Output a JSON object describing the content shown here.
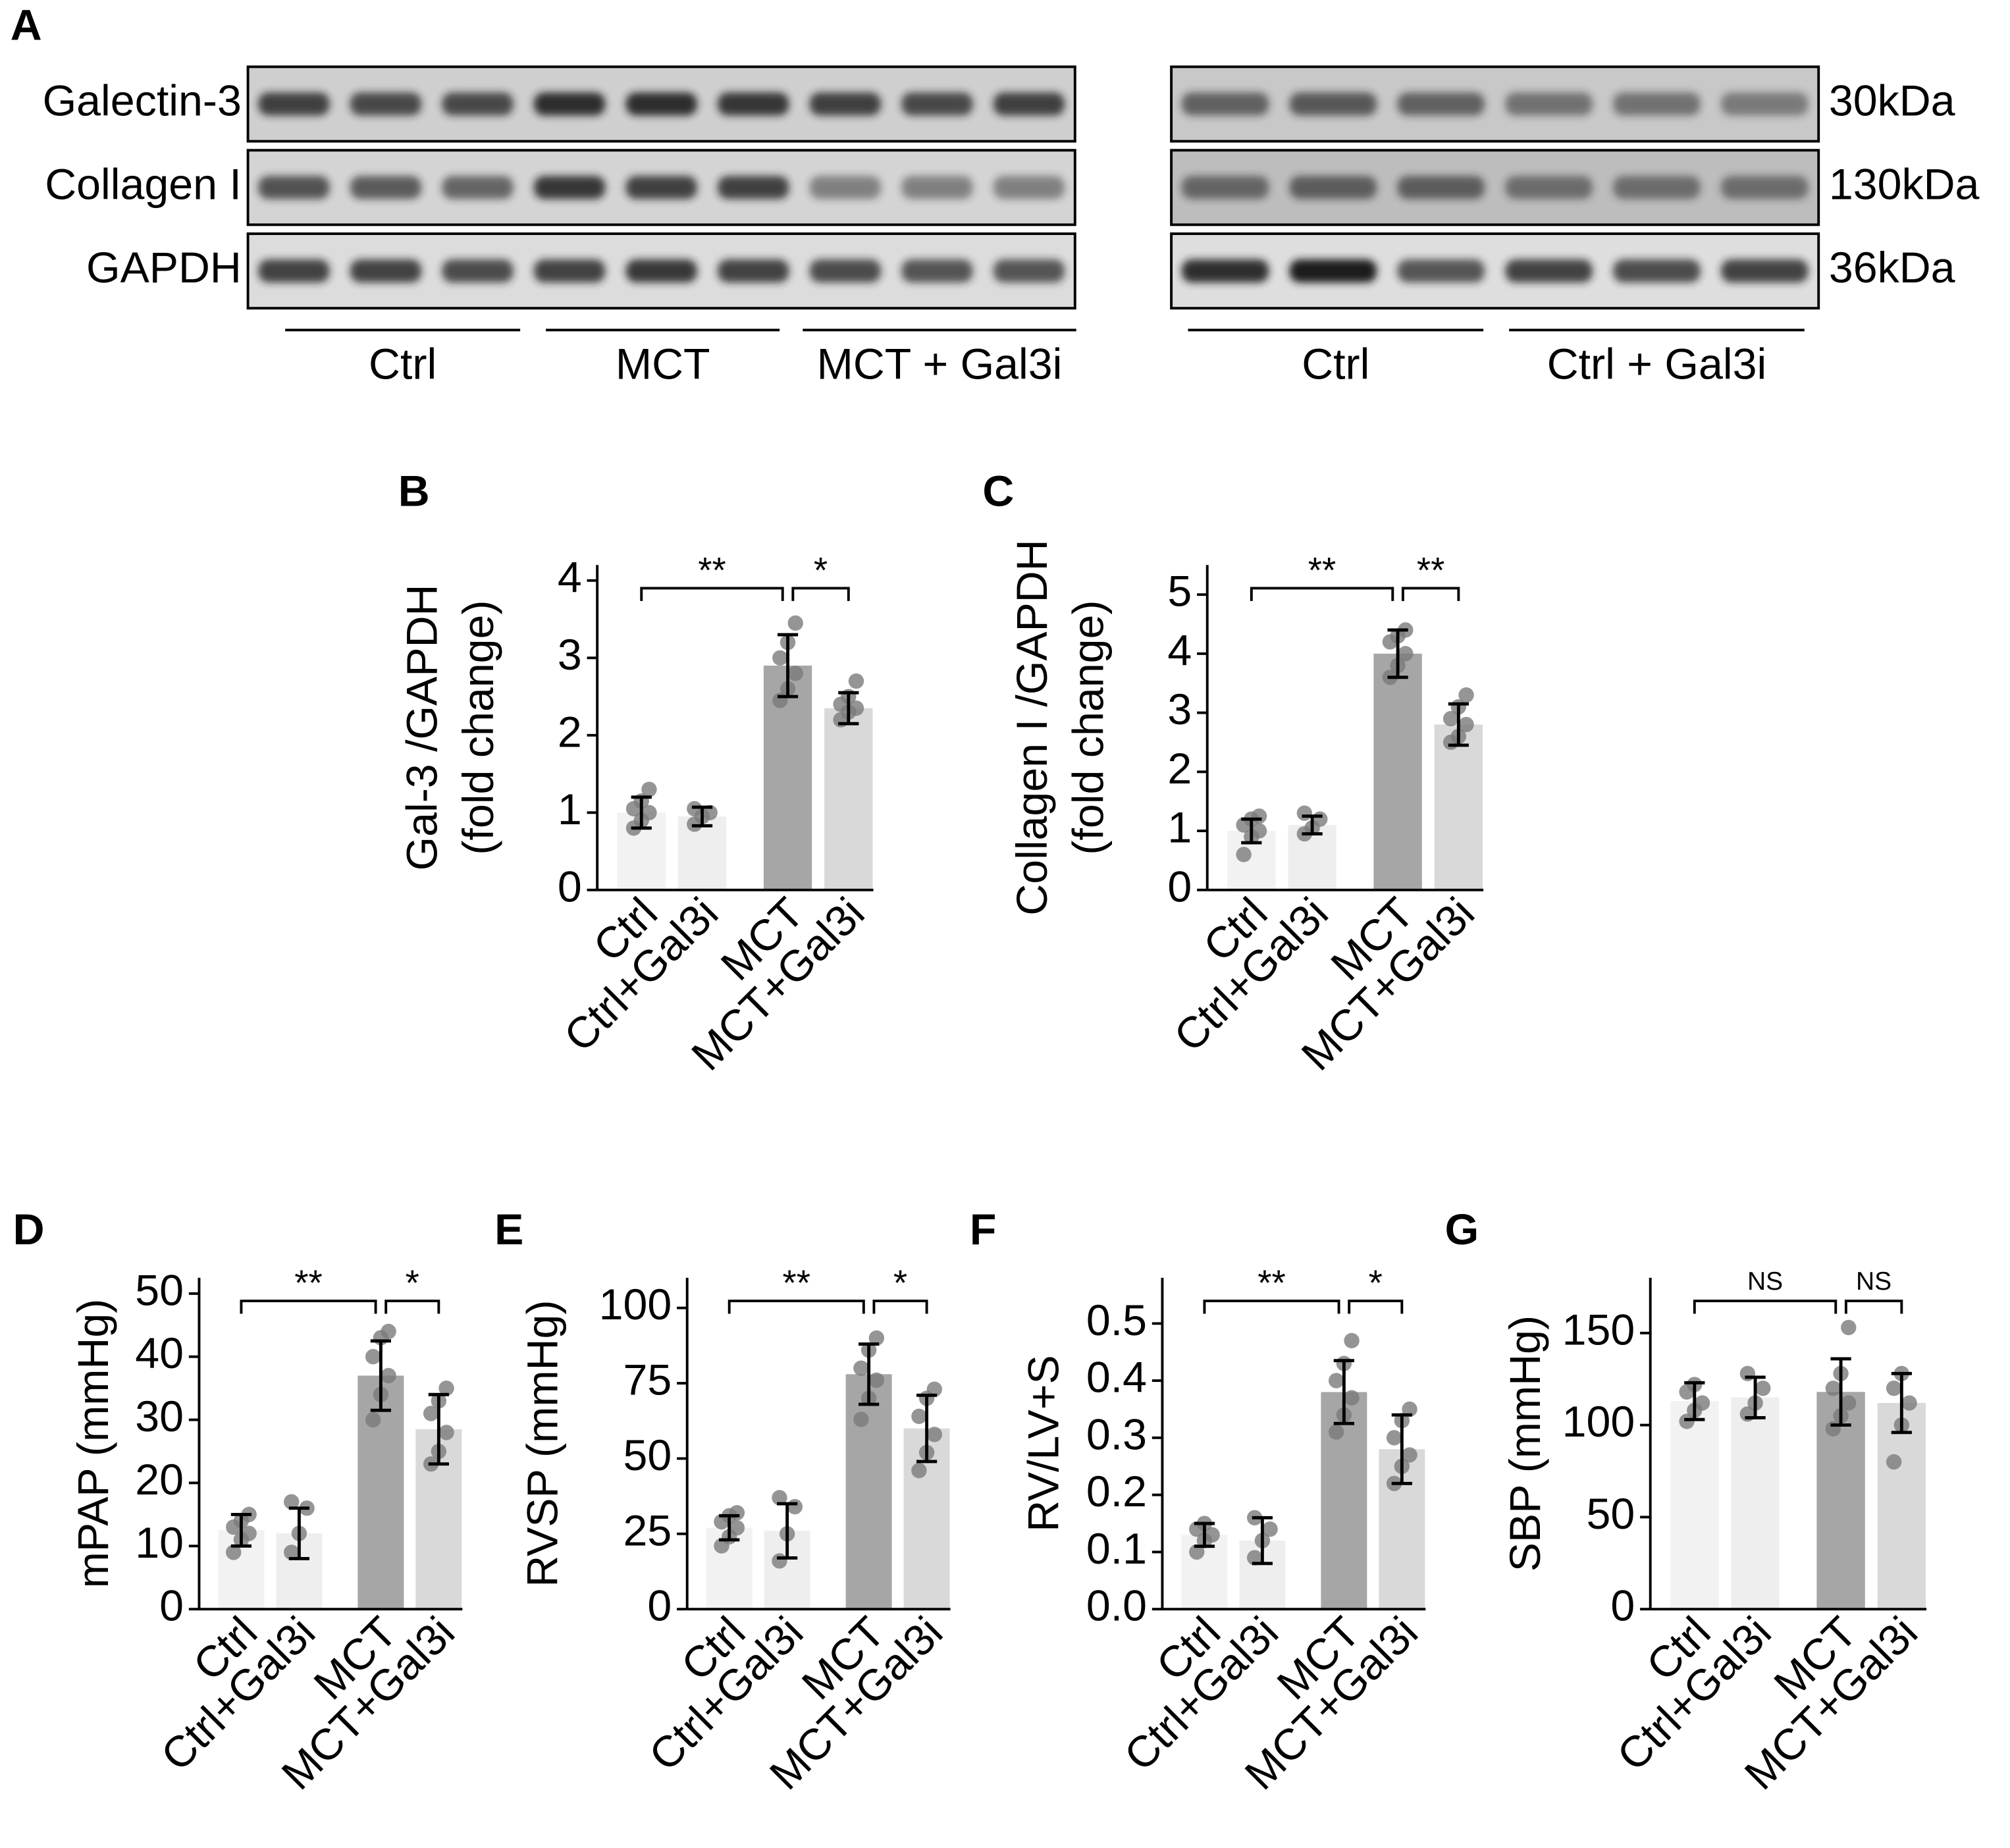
{
  "panel_a": {
    "letter": "A",
    "rows": [
      "Galectin-3",
      "Collagen I",
      "GAPDH"
    ],
    "sizes": [
      "30kDa",
      "130kDa",
      "36kDa"
    ],
    "left_groups": [
      "Ctrl",
      "MCT",
      "MCT + Gal3i"
    ],
    "right_groups": [
      "Ctrl",
      "Ctrl + Gal3i"
    ]
  },
  "chart_data": [
    {
      "type": "bar",
      "panel": "B",
      "ylabel": [
        "Gal-3 /GAPDH",
        "(fold change)"
      ],
      "categories": [
        "Ctrl",
        "Ctrl+Gal3i",
        "MCT",
        "MCT+Gal3i"
      ],
      "colors": [
        "#f2f2f2",
        "#eeeeee",
        "#a6a6a6",
        "#d9d9d9"
      ],
      "values": [
        1.0,
        0.95,
        2.9,
        2.35
      ],
      "errors": [
        0.2,
        0.12,
        0.4,
        0.2
      ],
      "points": [
        [
          0.8,
          0.9,
          1.0,
          1.05,
          1.15,
          1.3
        ],
        [
          0.85,
          0.95,
          1.0,
          1.05
        ],
        [
          2.45,
          2.6,
          2.8,
          3.0,
          3.2,
          3.45
        ],
        [
          2.2,
          2.3,
          2.35,
          2.4,
          2.5,
          2.7
        ]
      ],
      "ylim": [
        0,
        4.2
      ],
      "yticks": [
        0,
        1,
        2,
        3,
        4
      ],
      "significance": [
        {
          "between": [
            0,
            2
          ],
          "label": "**"
        },
        {
          "between": [
            2,
            3
          ],
          "label": "*"
        }
      ]
    },
    {
      "type": "bar",
      "panel": "C",
      "ylabel": [
        "Collagen I /GAPDH",
        "(fold change)"
      ],
      "categories": [
        "Ctrl",
        "Ctrl+Gal3i",
        "MCT",
        "MCT+Gal3i"
      ],
      "colors": [
        "#f2f2f2",
        "#eeeeee",
        "#a6a6a6",
        "#d9d9d9"
      ],
      "values": [
        1.0,
        1.1,
        4.0,
        2.8
      ],
      "errors": [
        0.2,
        0.15,
        0.4,
        0.35
      ],
      "points": [
        [
          0.6,
          0.9,
          1.0,
          1.1,
          1.2,
          1.25
        ],
        [
          0.95,
          1.05,
          1.2,
          1.3
        ],
        [
          3.6,
          3.8,
          4.0,
          4.2,
          4.3,
          4.4
        ],
        [
          2.5,
          2.6,
          2.8,
          2.9,
          3.1,
          3.3
        ]
      ],
      "ylim": [
        0,
        5.5
      ],
      "yticks": [
        0,
        1,
        2,
        3,
        4,
        5
      ],
      "significance": [
        {
          "between": [
            0,
            2
          ],
          "label": "**"
        },
        {
          "between": [
            2,
            3
          ],
          "label": "**"
        }
      ]
    },
    {
      "type": "bar",
      "panel": "D",
      "ylabel": [
        "mPAP (mmHg)"
      ],
      "categories": [
        "Ctrl",
        "Ctrl+Gal3i",
        "MCT",
        "MCT+Gal3i"
      ],
      "colors": [
        "#f2f2f2",
        "#eeeeee",
        "#a6a6a6",
        "#d9d9d9"
      ],
      "values": [
        12.5,
        12,
        37,
        28.5
      ],
      "errors": [
        2.5,
        4,
        5.5,
        5.5
      ],
      "points": [
        [
          9,
          11,
          12,
          13,
          14,
          15
        ],
        [
          9,
          12,
          16,
          17
        ],
        [
          30,
          34,
          37,
          40,
          43,
          44
        ],
        [
          23,
          25,
          28,
          31,
          33,
          35
        ]
      ],
      "ylim": [
        0,
        52.5
      ],
      "yticks": [
        0,
        10,
        20,
        30,
        40,
        50
      ],
      "significance": [
        {
          "between": [
            0,
            2
          ],
          "label": "**"
        },
        {
          "between": [
            2,
            3
          ],
          "label": "*"
        }
      ]
    },
    {
      "type": "bar",
      "panel": "E",
      "ylabel": [
        "RVSP (mmHg)"
      ],
      "categories": [
        "Ctrl",
        "Ctrl+Gal3i",
        "MCT",
        "MCT+Gal3i"
      ],
      "colors": [
        "#f2f2f2",
        "#eeeeee",
        "#a6a6a6",
        "#d9d9d9"
      ],
      "values": [
        27,
        26,
        78,
        60
      ],
      "errors": [
        4,
        9,
        10,
        11
      ],
      "points": [
        [
          21,
          24,
          27,
          29,
          31,
          32
        ],
        [
          16,
          25,
          34,
          37
        ],
        [
          63,
          70,
          76,
          80,
          86,
          90
        ],
        [
          46,
          52,
          58,
          64,
          70,
          73
        ]
      ],
      "ylim": [
        0,
        110
      ],
      "yticks": [
        0,
        25,
        50,
        75,
        100
      ],
      "significance": [
        {
          "between": [
            0,
            2
          ],
          "label": "**"
        },
        {
          "between": [
            2,
            3
          ],
          "label": "*"
        }
      ]
    },
    {
      "type": "bar",
      "panel": "F",
      "ylabel": [
        "RV/LV+S"
      ],
      "categories": [
        "Ctrl",
        "Ctrl+Gal3i",
        "MCT",
        "MCT+Gal3i"
      ],
      "colors": [
        "#f2f2f2",
        "#eeeeee",
        "#a6a6a6",
        "#d9d9d9"
      ],
      "values": [
        0.13,
        0.12,
        0.38,
        0.28
      ],
      "errors": [
        0.02,
        0.04,
        0.055,
        0.06
      ],
      "points": [
        [
          0.1,
          0.12,
          0.13,
          0.14,
          0.15
        ],
        [
          0.09,
          0.12,
          0.14,
          0.16
        ],
        [
          0.31,
          0.34,
          0.37,
          0.4,
          0.43,
          0.47
        ],
        [
          0.22,
          0.25,
          0.27,
          0.3,
          0.33,
          0.35
        ]
      ],
      "ylim": [
        0,
        0.58
      ],
      "yticks": [
        {
          "value": 0,
          "label": "0.0"
        },
        0.1,
        0.2,
        0.3,
        0.4,
        0.5
      ],
      "significance": [
        {
          "between": [
            0,
            2
          ],
          "label": "**"
        },
        {
          "between": [
            2,
            3
          ],
          "label": "*"
        }
      ]
    },
    {
      "type": "bar",
      "panel": "G",
      "ylabel": [
        "SBP (mmHg)"
      ],
      "categories": [
        "Ctrl",
        "Ctrl+Gal3i",
        "MCT",
        "MCT+Gal3i"
      ],
      "colors": [
        "#f2f2f2",
        "#eeeeee",
        "#a6a6a6",
        "#d9d9d9"
      ],
      "values": [
        113,
        115,
        118,
        112
      ],
      "errors": [
        10,
        11,
        18,
        16
      ],
      "points": [
        [
          102,
          108,
          112,
          118,
          122
        ],
        [
          106,
          112,
          120,
          128
        ],
        [
          98,
          105,
          112,
          120,
          128,
          153
        ],
        [
          80,
          100,
          112,
          120,
          128
        ]
      ],
      "ylim": [
        0,
        180
      ],
      "yticks": [
        0,
        50,
        100,
        150
      ],
      "significance": [
        {
          "between": [
            0,
            2
          ],
          "label": "NS"
        },
        {
          "between": [
            2,
            3
          ],
          "label": "NS"
        }
      ]
    }
  ]
}
